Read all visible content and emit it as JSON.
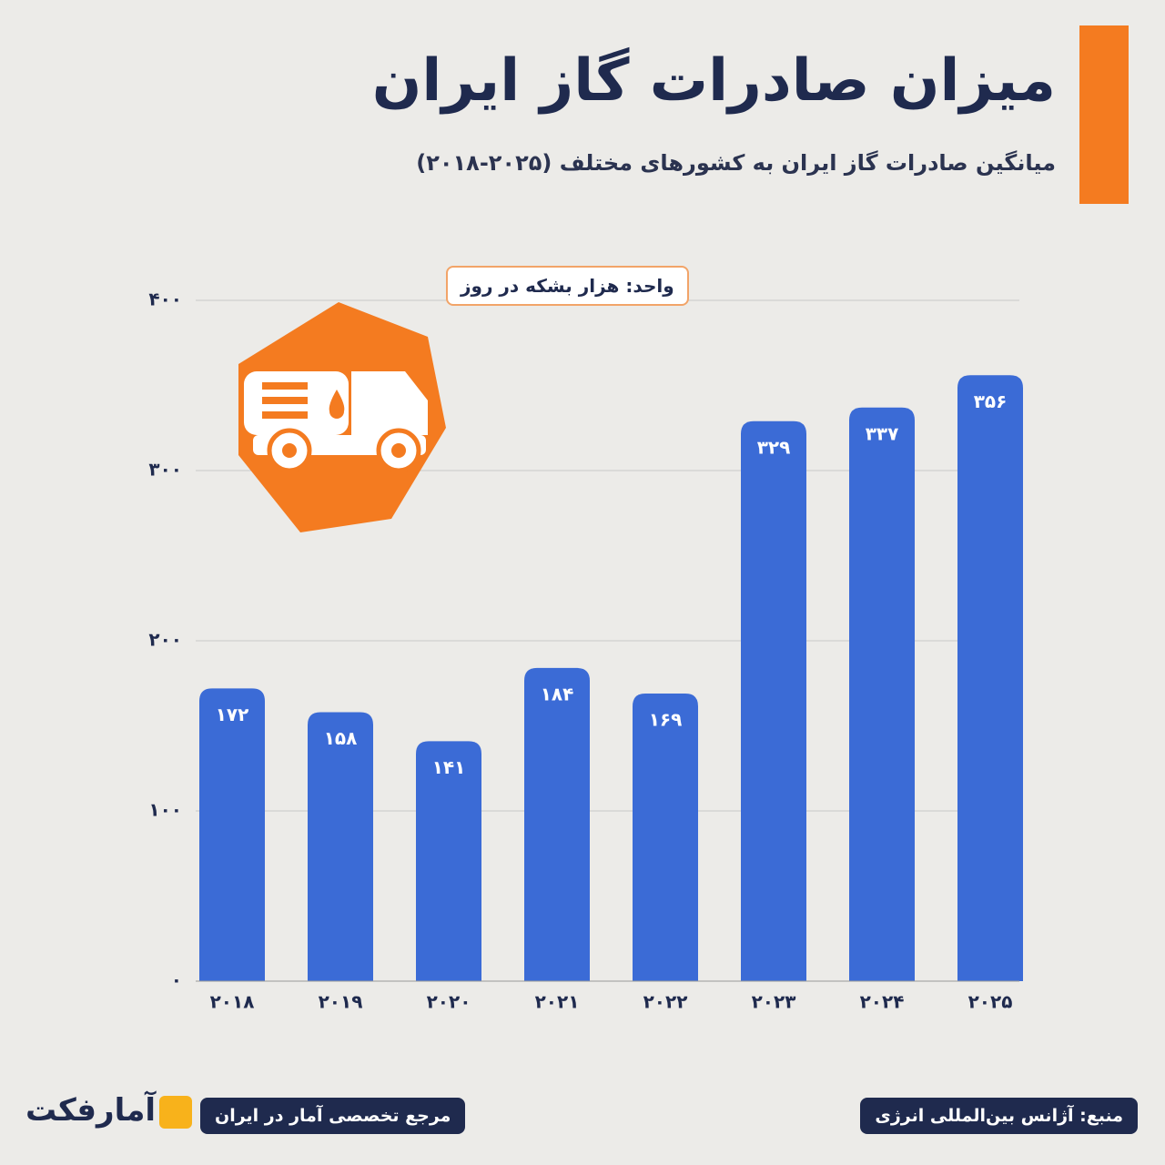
{
  "chart_data": {
    "type": "bar",
    "title": "میزان صادرات گاز ایران",
    "subtitle": "میانگین صادرات گاز ایران به کشورهای مختلف (۲۰۲۵-۲۰۱۸)",
    "unit_label": "واحد: هزار بشکه در روز",
    "categories": [
      "۲۰۱۸",
      "۲۰۱۹",
      "۲۰۲۰",
      "۲۰۲۱",
      "۲۰۲۲",
      "۲۰۲۳",
      "۲۰۲۴",
      "۲۰۲۵"
    ],
    "values": [
      172,
      158,
      141,
      184,
      169,
      329,
      337,
      356
    ],
    "value_labels": [
      "۱۷۲",
      "۱۵۸",
      "۱۴۱",
      "۱۸۴",
      "۱۶۹",
      "۳۲۹",
      "۳۳۷",
      "۳۵۶"
    ],
    "color": "#3b6bd6",
    "ylim": [
      0,
      400
    ],
    "yticks": [
      {
        "value": 0,
        "label": "۰"
      },
      {
        "value": 100,
        "label": "۱۰۰"
      },
      {
        "value": 200,
        "label": "۲۰۰"
      },
      {
        "value": 300,
        "label": "۳۰۰"
      },
      {
        "value": 400,
        "label": "۴۰۰"
      }
    ],
    "grid": true
  },
  "footer": {
    "source": "منبع: آژانس بین‌المللی انرژی",
    "tagline": "مرجع تخصصی آمار در ایران",
    "brand": "آمارفکت"
  }
}
